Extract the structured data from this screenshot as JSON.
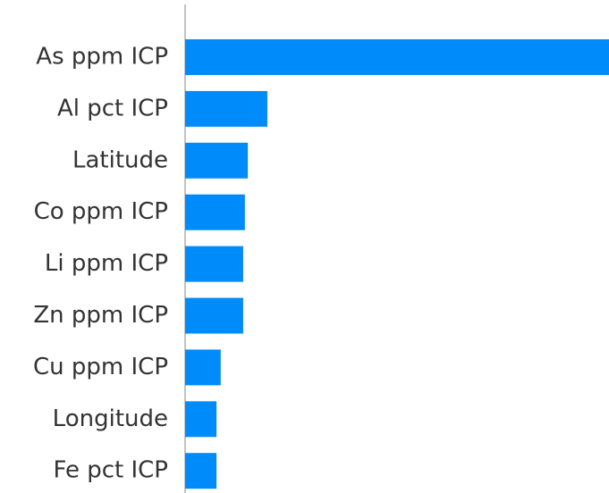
{
  "chart_data": {
    "type": "barh",
    "categories": [
      "As ppm ICP",
      "Al pct ICP",
      "Latitude",
      "Co ppm ICP",
      "Li ppm ICP",
      "Zn ppm ICP",
      "Cu ppm ICP",
      "Longitude",
      "Fe pct ICP"
    ],
    "values": [
      1.0,
      0.194,
      0.148,
      0.141,
      0.137,
      0.137,
      0.084,
      0.074,
      0.074
    ],
    "color": "#008bfb",
    "xlim": [
      0,
      1
    ]
  }
}
